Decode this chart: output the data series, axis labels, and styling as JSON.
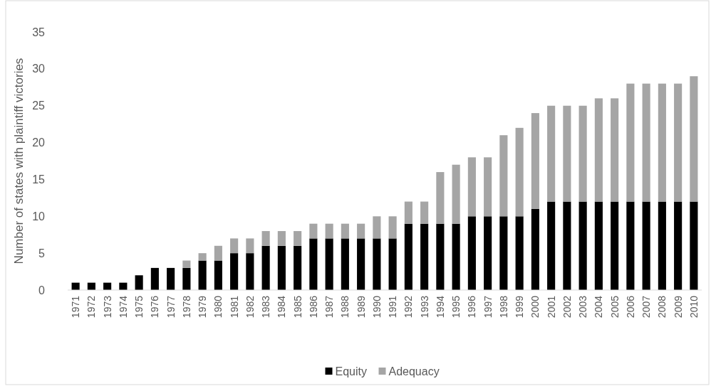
{
  "chart_data": {
    "type": "bar",
    "stacked": true,
    "ylabel": "Number of states with plaintiff victories",
    "categories": [
      "1971",
      "1972",
      "1973",
      "1974",
      "1975",
      "1976",
      "1977",
      "1978",
      "1979",
      "1980",
      "1981",
      "1982",
      "1983",
      "1984",
      "1985",
      "1986",
      "1987",
      "1988",
      "1989",
      "1990",
      "1991",
      "1992",
      "1993",
      "1994",
      "1995",
      "1996",
      "1997",
      "1998",
      "1999",
      "2000",
      "2001",
      "2002",
      "2003",
      "2004",
      "2005",
      "2006",
      "2007",
      "2008",
      "2009",
      "2010"
    ],
    "series": [
      {
        "name": "Equity",
        "color": "#000000",
        "values": [
          1,
          1,
          1,
          1,
          2,
          3,
          3,
          3,
          4,
          4,
          5,
          5,
          6,
          6,
          6,
          7,
          7,
          7,
          7,
          7,
          7,
          9,
          9,
          9,
          9,
          10,
          10,
          10,
          10,
          11,
          12,
          12,
          12,
          12,
          12,
          12,
          12,
          12,
          12,
          12
        ]
      },
      {
        "name": "Adequacy",
        "color": "#a5a5a5",
        "values": [
          0,
          0,
          0,
          0,
          0,
          0,
          0,
          1,
          1,
          2,
          2,
          2,
          2,
          2,
          2,
          2,
          2,
          2,
          2,
          3,
          3,
          3,
          3,
          7,
          8,
          8,
          8,
          11,
          12,
          13,
          13,
          13,
          13,
          14,
          14,
          16,
          16,
          16,
          16,
          17
        ]
      }
    ],
    "ylim": [
      0,
      35
    ],
    "yticks": [
      0,
      5,
      10,
      15,
      20,
      25,
      30,
      35
    ],
    "grid": false,
    "legend": "bottom"
  }
}
